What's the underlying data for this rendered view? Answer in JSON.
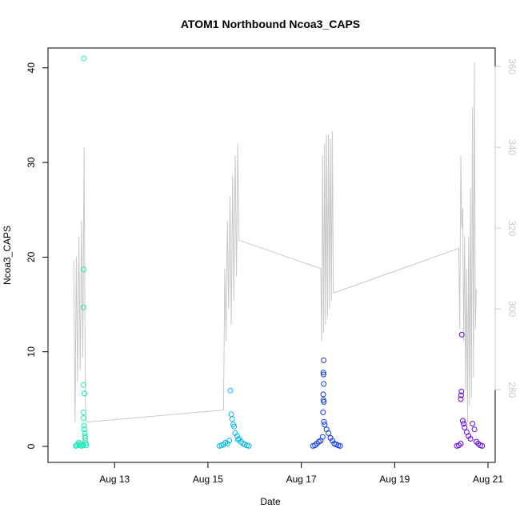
{
  "chart_data": {
    "type": "scatter",
    "title": "ATOM1 Northbound Ncoa3_CAPS",
    "xlabel": "Date",
    "ylabel": "Ncoa3_CAPS",
    "x_ticks": [
      "Aug 13",
      "Aug 15",
      "Aug 17",
      "Aug 19",
      "Aug 21"
    ],
    "y_ticks": [
      "0",
      "10",
      "20",
      "30",
      "40"
    ],
    "y2_ticks": [
      "280",
      "300",
      "320",
      "340",
      "360"
    ],
    "ylim": [
      0,
      41
    ],
    "y2lim": [
      266,
      362
    ],
    "colors": {
      "line": "#c8c8c8",
      "right_axis": "#c8c8c8",
      "days": [
        "#1de9b6",
        "#00b8e6",
        "#0a36f0",
        "#6200ea"
      ]
    },
    "series": [
      {
        "points": [
          {
            "x": "2019-08-12 04:00",
            "y": 0.05
          },
          {
            "x": "2019-08-12 04:30",
            "y": 0.1
          },
          {
            "x": "2019-08-12 05:00",
            "y": 0.2
          },
          {
            "x": "2019-08-12 05:30",
            "y": 0.4
          },
          {
            "x": "2019-08-12 06:00",
            "y": 0.1
          },
          {
            "x": "2019-08-12 06:30",
            "y": 0.3
          },
          {
            "x": "2019-08-12 07:00",
            "y": 0.05
          },
          {
            "x": "2019-08-12 07:30",
            "y": 0.2
          },
          {
            "x": "2019-08-12 08:00",
            "y": 0.1
          },
          {
            "x": "2019-08-12 08:15",
            "y": 41
          },
          {
            "x": "2019-08-12 08:10",
            "y": 18.7
          },
          {
            "x": "2019-08-12 08:05",
            "y": 14.7
          },
          {
            "x": "2019-08-12 08:00",
            "y": 6.5
          },
          {
            "x": "2019-08-12 08:30",
            "y": 5.6
          },
          {
            "x": "2019-08-12 08:05",
            "y": 3.6
          },
          {
            "x": "2019-08-12 08:00",
            "y": 3.0
          },
          {
            "x": "2019-08-12 08:20",
            "y": 2.2
          },
          {
            "x": "2019-08-12 08:25",
            "y": 1.8
          },
          {
            "x": "2019-08-12 08:40",
            "y": 1.4
          },
          {
            "x": "2019-08-12 08:50",
            "y": 0.9
          },
          {
            "x": "2019-08-12 09:00",
            "y": 0.6
          },
          {
            "x": "2019-08-12 09:15",
            "y": 0.3
          },
          {
            "x": "2019-08-12 09:30",
            "y": 0.1
          },
          {
            "x": "2019-08-12 08:45",
            "y": 1.1
          }
        ]
      },
      {
        "points": [
          {
            "x": "2019-08-15 06:00",
            "y": 0.05
          },
          {
            "x": "2019-08-15 07:00",
            "y": 0.1
          },
          {
            "x": "2019-08-15 08:00",
            "y": 0.2
          },
          {
            "x": "2019-08-15 09:00",
            "y": 0.4
          },
          {
            "x": "2019-08-15 10:00",
            "y": 0.3
          },
          {
            "x": "2019-08-15 11:00",
            "y": 0.6
          },
          {
            "x": "2019-08-15 11:30",
            "y": 5.9
          },
          {
            "x": "2019-08-15 12:00",
            "y": 3.4
          },
          {
            "x": "2019-08-15 12:30",
            "y": 2.9
          },
          {
            "x": "2019-08-15 13:00",
            "y": 2.3
          },
          {
            "x": "2019-08-15 13:30",
            "y": 2.1
          },
          {
            "x": "2019-08-15 14:00",
            "y": 1.4
          },
          {
            "x": "2019-08-15 15:00",
            "y": 1.1
          },
          {
            "x": "2019-08-15 16:00",
            "y": 0.8
          },
          {
            "x": "2019-08-15 17:00",
            "y": 0.5
          },
          {
            "x": "2019-08-15 18:00",
            "y": 0.3
          },
          {
            "x": "2019-08-15 19:00",
            "y": 0.2
          },
          {
            "x": "2019-08-15 20:00",
            "y": 0.1
          },
          {
            "x": "2019-08-15 21:00",
            "y": 0.05
          },
          {
            "x": "2019-08-15 15:30",
            "y": 0.7
          }
        ]
      },
      {
        "points": [
          {
            "x": "2019-08-17 06:00",
            "y": 0.05
          },
          {
            "x": "2019-08-17 07:00",
            "y": 0.1
          },
          {
            "x": "2019-08-17 08:00",
            "y": 0.3
          },
          {
            "x": "2019-08-17 09:00",
            "y": 0.5
          },
          {
            "x": "2019-08-17 10:00",
            "y": 0.6
          },
          {
            "x": "2019-08-17 11:00",
            "y": 1.0
          },
          {
            "x": "2019-08-17 11:30",
            "y": 9.1
          },
          {
            "x": "2019-08-17 11:20",
            "y": 7.8
          },
          {
            "x": "2019-08-17 11:25",
            "y": 7.6
          },
          {
            "x": "2019-08-17 11:30",
            "y": 6.6
          },
          {
            "x": "2019-08-17 11:15",
            "y": 5.5
          },
          {
            "x": "2019-08-17 11:20",
            "y": 4.9
          },
          {
            "x": "2019-08-17 11:35",
            "y": 4.7
          },
          {
            "x": "2019-08-17 11:10",
            "y": 3.6
          },
          {
            "x": "2019-08-17 11:40",
            "y": 2.6
          },
          {
            "x": "2019-08-17 12:00",
            "y": 2.3
          },
          {
            "x": "2019-08-17 13:00",
            "y": 1.8
          },
          {
            "x": "2019-08-17 14:00",
            "y": 1.4
          },
          {
            "x": "2019-08-17 15:00",
            "y": 0.9
          },
          {
            "x": "2019-08-17 16:00",
            "y": 0.6
          },
          {
            "x": "2019-08-17 17:00",
            "y": 0.3
          },
          {
            "x": "2019-08-17 18:00",
            "y": 0.2
          },
          {
            "x": "2019-08-17 19:00",
            "y": 0.1
          },
          {
            "x": "2019-08-17 20:00",
            "y": 0.05
          }
        ]
      },
      {
        "points": [
          {
            "x": "2019-08-20 08:00",
            "y": 0.05
          },
          {
            "x": "2019-08-20 09:00",
            "y": 0.1
          },
          {
            "x": "2019-08-20 10:00",
            "y": 0.3
          },
          {
            "x": "2019-08-20 10:30",
            "y": 11.8
          },
          {
            "x": "2019-08-20 10:20",
            "y": 5.8
          },
          {
            "x": "2019-08-20 10:10",
            "y": 5.4
          },
          {
            "x": "2019-08-20 10:00",
            "y": 5.0
          },
          {
            "x": "2019-08-20 11:00",
            "y": 2.7
          },
          {
            "x": "2019-08-20 11:30",
            "y": 2.4
          },
          {
            "x": "2019-08-20 12:00",
            "y": 2.0
          },
          {
            "x": "2019-08-20 13:00",
            "y": 1.5
          },
          {
            "x": "2019-08-20 14:00",
            "y": 1.1
          },
          {
            "x": "2019-08-20 15:00",
            "y": 0.8
          },
          {
            "x": "2019-08-20 16:00",
            "y": 2.4
          },
          {
            "x": "2019-08-20 17:00",
            "y": 1.8
          },
          {
            "x": "2019-08-20 18:00",
            "y": 0.5
          },
          {
            "x": "2019-08-20 19:00",
            "y": 0.3
          },
          {
            "x": "2019-08-20 20:00",
            "y": 0.1
          },
          {
            "x": "2019-08-20 21:00",
            "y": 0.05
          }
        ]
      },
      {
        "axis": "right",
        "style": "line",
        "points": [
          {
            "x": "2019-08-12 03:00",
            "y": 312
          },
          {
            "x": "2019-08-12 03:40",
            "y": 272
          },
          {
            "x": "2019-08-12 04:20",
            "y": 313
          },
          {
            "x": "2019-08-12 05:00",
            "y": 282
          },
          {
            "x": "2019-08-12 05:40",
            "y": 318
          },
          {
            "x": "2019-08-12 06:20",
            "y": 285
          },
          {
            "x": "2019-08-12 07:00",
            "y": 322
          },
          {
            "x": "2019-08-12 07:40",
            "y": 288
          },
          {
            "x": "2019-08-12 08:20",
            "y": 340
          },
          {
            "x": "2019-08-12 09:00",
            "y": 276
          },
          {
            "x": "2019-08-12 09:30",
            "y": 272
          },
          {
            "x": "2019-08-15 08:00",
            "y": 275
          },
          {
            "x": "2019-08-15 08:40",
            "y": 310
          },
          {
            "x": "2019-08-15 09:20",
            "y": 292
          },
          {
            "x": "2019-08-15 10:00",
            "y": 322
          },
          {
            "x": "2019-08-15 10:40",
            "y": 300
          },
          {
            "x": "2019-08-15 11:20",
            "y": 328
          },
          {
            "x": "2019-08-15 12:00",
            "y": 296
          },
          {
            "x": "2019-08-15 12:40",
            "y": 333
          },
          {
            "x": "2019-08-15 13:20",
            "y": 302
          },
          {
            "x": "2019-08-15 14:00",
            "y": 338
          },
          {
            "x": "2019-08-15 14:40",
            "y": 308
          },
          {
            "x": "2019-08-15 15:20",
            "y": 341
          },
          {
            "x": "2019-08-15 16:00",
            "y": 317
          },
          {
            "x": "2019-08-17 10:00",
            "y": 310
          },
          {
            "x": "2019-08-17 10:30",
            "y": 292
          },
          {
            "x": "2019-08-17 11:00",
            "y": 338
          },
          {
            "x": "2019-08-17 11:30",
            "y": 294
          },
          {
            "x": "2019-08-17 12:00",
            "y": 341
          },
          {
            "x": "2019-08-17 12:30",
            "y": 296
          },
          {
            "x": "2019-08-17 13:00",
            "y": 343
          },
          {
            "x": "2019-08-17 13:30",
            "y": 298
          },
          {
            "x": "2019-08-17 14:00",
            "y": 343
          },
          {
            "x": "2019-08-17 14:30",
            "y": 300
          },
          {
            "x": "2019-08-17 15:00",
            "y": 342
          },
          {
            "x": "2019-08-17 15:30",
            "y": 302
          },
          {
            "x": "2019-08-17 16:00",
            "y": 344
          },
          {
            "x": "2019-08-17 16:30",
            "y": 304
          },
          {
            "x": "2019-08-17 17:00",
            "y": 304
          },
          {
            "x": "2019-08-20 09:00",
            "y": 315
          },
          {
            "x": "2019-08-20 09:30",
            "y": 295
          },
          {
            "x": "2019-08-20 10:00",
            "y": 338
          },
          {
            "x": "2019-08-20 10:30",
            "y": 320
          },
          {
            "x": "2019-08-20 11:00",
            "y": 325
          },
          {
            "x": "2019-08-20 11:30",
            "y": 292
          },
          {
            "x": "2019-08-20 12:00",
            "y": 318
          },
          {
            "x": "2019-08-20 12:30",
            "y": 280
          },
          {
            "x": "2019-08-20 13:00",
            "y": 310
          },
          {
            "x": "2019-08-20 13:30",
            "y": 272
          },
          {
            "x": "2019-08-20 14:00",
            "y": 318
          },
          {
            "x": "2019-08-20 14:30",
            "y": 276
          },
          {
            "x": "2019-08-20 15:00",
            "y": 330
          },
          {
            "x": "2019-08-20 15:30",
            "y": 278
          },
          {
            "x": "2019-08-20 16:00",
            "y": 350
          },
          {
            "x": "2019-08-20 16:30",
            "y": 283
          },
          {
            "x": "2019-08-20 17:00",
            "y": 361
          },
          {
            "x": "2019-08-20 17:30",
            "y": 295
          },
          {
            "x": "2019-08-20 18:00",
            "y": 305
          }
        ]
      }
    ]
  }
}
